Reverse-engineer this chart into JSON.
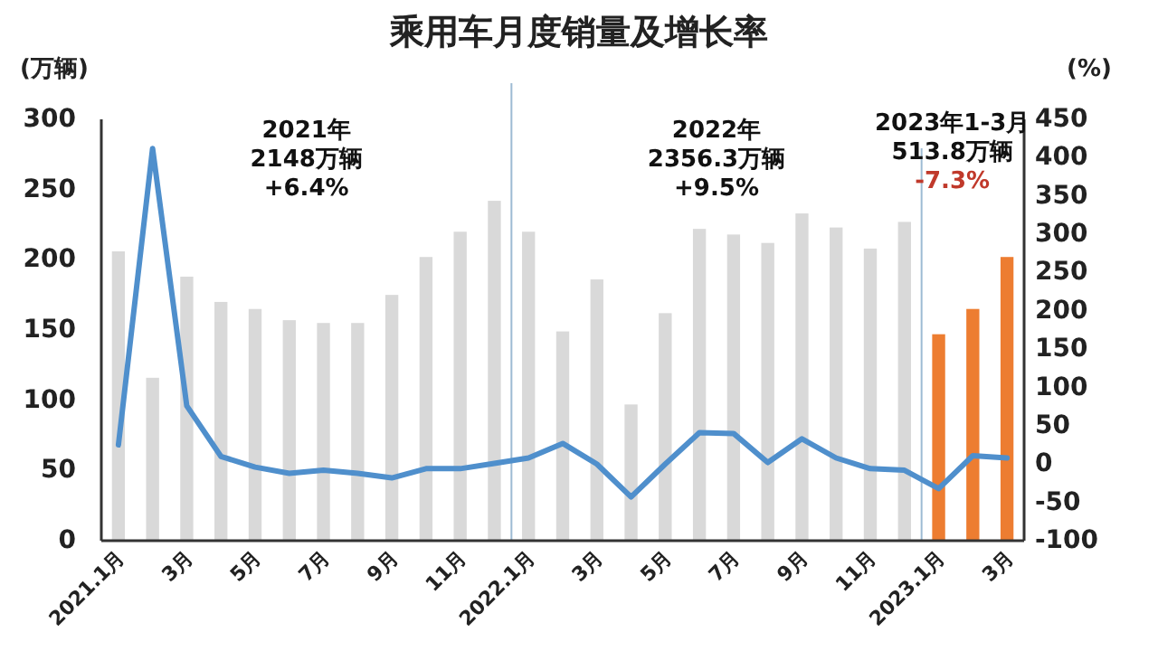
{
  "chart_data": {
    "type": "bar",
    "title": "乘用车月度销量及增长率",
    "ylabel": "(万辆)",
    "y2label": "(%)",
    "categories": [
      "2021.1月",
      null,
      "3月",
      null,
      "5月",
      null,
      "7月",
      null,
      "9月",
      null,
      "11月",
      null,
      "2022.1月",
      null,
      "3月",
      null,
      "5月",
      null,
      "7月",
      null,
      "9月",
      null,
      "11月",
      null,
      "2023.1月",
      null,
      "3月"
    ],
    "series": [
      {
        "colors": [
          "#d9d9d9",
          "#d9d9d9",
          "#d9d9d9",
          "#d9d9d9",
          "#d9d9d9",
          "#d9d9d9",
          "#d9d9d9",
          "#d9d9d9",
          "#d9d9d9",
          "#d9d9d9",
          "#d9d9d9",
          "#d9d9d9",
          "#d9d9d9",
          "#d9d9d9",
          "#d9d9d9",
          "#d9d9d9",
          "#d9d9d9",
          "#d9d9d9",
          "#d9d9d9",
          "#d9d9d9",
          "#d9d9d9",
          "#d9d9d9",
          "#d9d9d9",
          "#d9d9d9",
          "#ed7d31",
          "#ed7d31",
          "#ed7d31"
        ],
        "values": [
          206,
          116,
          188,
          170,
          165,
          157,
          155,
          155,
          175,
          202,
          220,
          242,
          220,
          149,
          186,
          97,
          162,
          222,
          218,
          212,
          233,
          223,
          208,
          227,
          147,
          165,
          202
        ]
      },
      {
        "type": "line",
        "axis": "y2",
        "color": "#4f8fcc",
        "values": [
          25,
          412,
          76,
          10,
          -4,
          -12,
          -8,
          -12,
          -18,
          -6,
          -6,
          1,
          8,
          27,
          0,
          -43,
          0,
          41,
          40,
          2,
          33,
          8,
          -6,
          -8,
          -32,
          11,
          8
        ]
      }
    ],
    "ylim": [
      0,
      300
    ],
    "yticks": [
      0,
      50,
      100,
      150,
      200,
      250,
      300
    ],
    "y2lim": [
      -100,
      450
    ],
    "y2ticks": [
      -100,
      -50,
      0,
      50,
      100,
      150,
      200,
      250,
      300,
      350,
      400,
      450
    ],
    "annotations": [
      "2021年\n2148万辆\n+6.4%",
      "2022年\n2356.3万辆\n+9.5%",
      "2023年1-3月\n513.8万辆",
      "-7.3%"
    ],
    "grid": false,
    "marker": "none",
    "line_style": "solid"
  }
}
